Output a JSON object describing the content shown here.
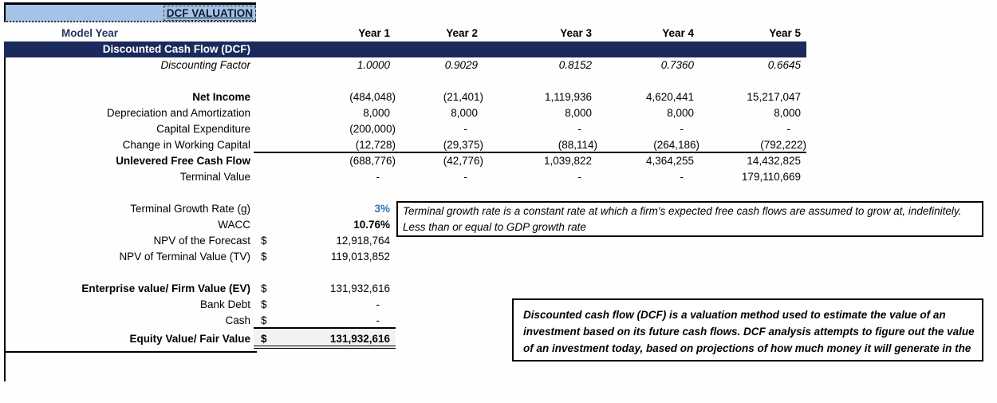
{
  "title": "DCF VALUATION",
  "colors": {
    "header_fill": "#a5c3e6",
    "section_fill": "#1b2a5c",
    "accent_blue": "#2e74b5",
    "model_year_text": "#1f3864",
    "equity_fill": "#f2f2f2"
  },
  "header": {
    "model_year": "Model Year",
    "years": [
      "Year 1",
      "Year 2",
      "Year 3",
      "Year 4",
      "Year 5"
    ]
  },
  "section": {
    "label": "Discounted Cash Flow (DCF)"
  },
  "table": {
    "discounting_factor": {
      "label": "Discounting Factor",
      "values": [
        "1.0000",
        "0.9029",
        "0.8152",
        "0.7360",
        "0.6645"
      ]
    },
    "net_income": {
      "label": "Net Income",
      "values": [
        "(484,048)",
        "(21,401)",
        "1,119,936",
        "4,620,441",
        "15,217,047"
      ]
    },
    "depreciation": {
      "label": "Depreciation and Amortization",
      "values": [
        "8,000",
        "8,000",
        "8,000",
        "8,000",
        "8,000"
      ]
    },
    "capex": {
      "label": "Capital Expenditure",
      "values": [
        "(200,000)",
        "-",
        "-",
        "-",
        "-"
      ]
    },
    "change_wc": {
      "label": "Change in Working Capital",
      "values": [
        "(12,728)",
        "(29,375)",
        "(88,114)",
        "(264,186)",
        "(792,222)"
      ]
    },
    "ufcf": {
      "label": "Unlevered Free Cash Flow",
      "values": [
        "(688,776)",
        "(42,776)",
        "1,039,822",
        "4,364,255",
        "14,432,825"
      ]
    },
    "terminal_value": {
      "label": "Terminal Value",
      "values": [
        "-",
        "-",
        "-",
        "-",
        "179,110,669"
      ]
    }
  },
  "assumptions": {
    "tgr": {
      "label": "Terminal Growth Rate (g)",
      "value": "3%",
      "note": "Terminal growth rate is a constant rate at which a firm's expected free cash flows are assumed to grow at, indefinitely."
    },
    "wacc": {
      "label": "WACC",
      "value": "10.76%",
      "note": "Less than or equal to GDP growth rate"
    },
    "npv_forecast": {
      "label": "NPV of the Forecast",
      "currency": "$",
      "value": "12,918,764"
    },
    "npv_terminal": {
      "label": "NPV of Terminal Value (TV)",
      "currency": "$",
      "value": "119,013,852"
    }
  },
  "valuation": {
    "ev": {
      "label": "Enterprise value/ Firm Value (EV)",
      "currency": "$",
      "value": "131,932,616"
    },
    "bank_debt": {
      "label": "Bank Debt",
      "currency": "$",
      "value": "-"
    },
    "cash": {
      "label": "Cash",
      "currency": "$",
      "value": "-"
    },
    "equity": {
      "label": "Equity Value/ Fair Value",
      "currency": "$",
      "value": "131,932,616"
    }
  },
  "dcf_note": {
    "lines": [
      "Discounted cash flow (DCF) is a valuation method used to estimate the value of an",
      "investment based on its future cash flows. DCF analysis attempts to figure out the value",
      "of an investment today, based on projections of how much money it will generate in the"
    ]
  }
}
